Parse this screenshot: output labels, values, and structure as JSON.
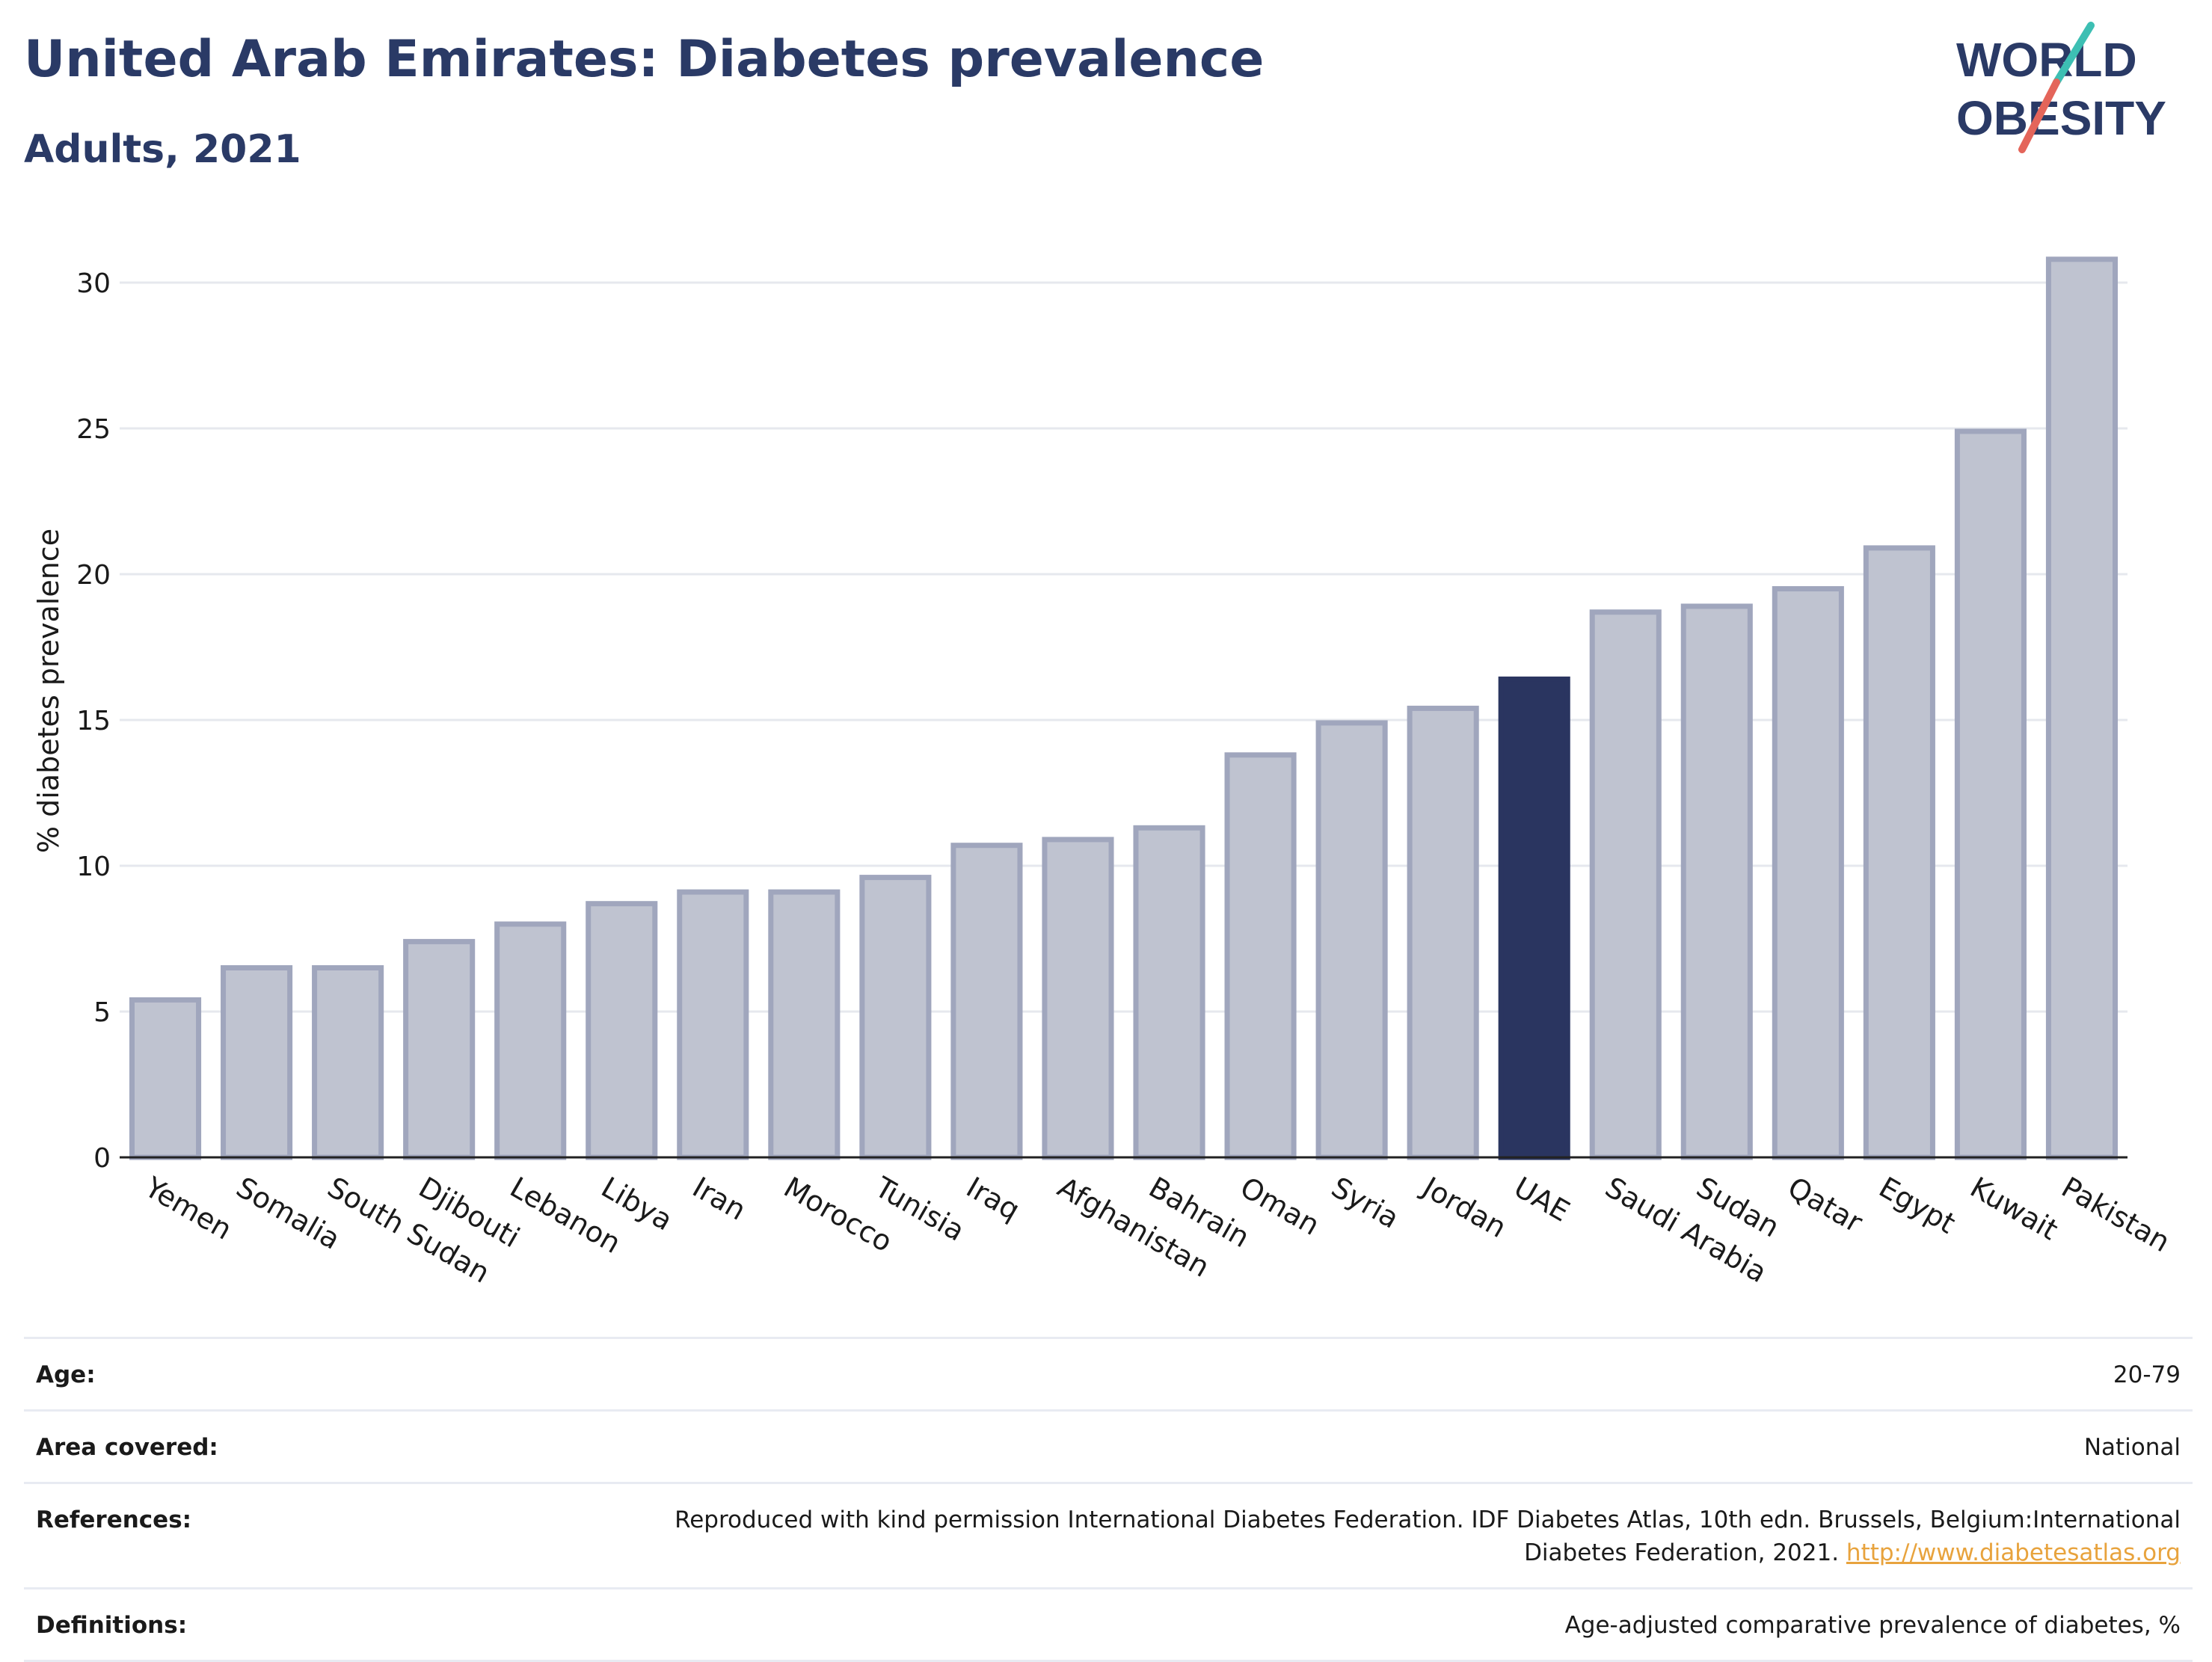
{
  "header": {
    "title": "United Arab Emirates: Diabetes prevalence",
    "subtitle": "Adults, 2021"
  },
  "logo": {
    "line1": "WORLD",
    "line2": "OBESITY",
    "colors": {
      "text": "#2a3a66",
      "slash_top": "#3dbfb3",
      "slash_bottom": "#e4655a"
    }
  },
  "chart_data": {
    "type": "bar",
    "ylabel": "% diabetes prevalence",
    "xlabel": "",
    "ylim": [
      0,
      32
    ],
    "yticks": [
      0,
      5,
      10,
      15,
      20,
      25,
      30
    ],
    "grid": true,
    "categories": [
      "Yemen",
      "Somalia",
      "South Sudan",
      "Djibouti",
      "Lebanon",
      "Libya",
      "Iran",
      "Morocco",
      "Tunisia",
      "Iraq",
      "Afghanistan",
      "Bahrain",
      "Oman",
      "Syria",
      "Jordan",
      "UAE",
      "Saudi Arabia",
      "Sudan",
      "Qatar",
      "Egypt",
      "Kuwait",
      "Pakistan"
    ],
    "values": [
      5.4,
      6.5,
      6.5,
      7.4,
      8.0,
      8.7,
      9.1,
      9.1,
      9.6,
      10.7,
      10.9,
      11.3,
      13.8,
      14.9,
      15.4,
      16.4,
      18.7,
      18.9,
      19.5,
      20.9,
      24.9,
      30.8
    ],
    "highlight": "UAE",
    "colors": {
      "bar": "#bfc3d0",
      "bar_edge": "#a0a6bd",
      "highlight": "#2a3560",
      "grid": "#e6e8ee",
      "axis": "#222222"
    }
  },
  "meta": {
    "rows": [
      {
        "label": "Age:",
        "value": "20-79"
      },
      {
        "label": "Area covered:",
        "value": "National"
      },
      {
        "label": "References:",
        "value": "Reproduced with kind permission International Diabetes Federation.  IDF Diabetes Atlas, 10th edn. Brussels, Belgium:International Diabetes Federation, 2021.",
        "link": "http://www.diabetesatlas.org"
      },
      {
        "label": "Definitions:",
        "value": "Age-adjusted comparative prevalence of diabetes, %"
      }
    ]
  }
}
